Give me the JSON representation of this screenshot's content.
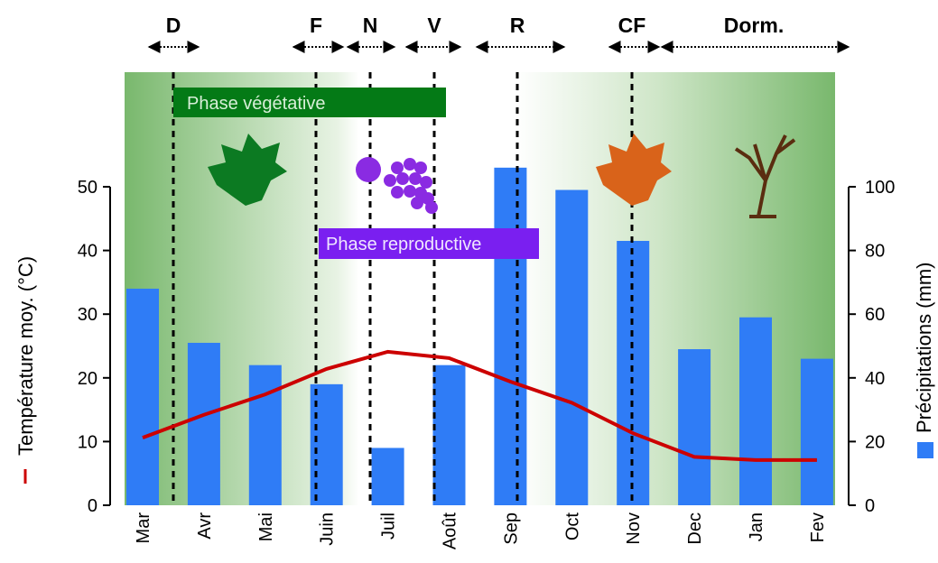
{
  "chart_data": {
    "type": "combo",
    "categories": [
      "Mar",
      "Avr",
      "Mai",
      "Juin",
      "Juil",
      "Août",
      "Sep",
      "Oct",
      "Nov",
      "Dec",
      "Jan",
      "Fev"
    ],
    "series": [
      {
        "name": "Précipitations (mm)",
        "type": "bar",
        "axis": "y2",
        "color": "#2f7cf6",
        "values": [
          68,
          51,
          44,
          38,
          18,
          44,
          106,
          99,
          83,
          49,
          59,
          46
        ]
      },
      {
        "name": "Température moy. (°C)",
        "type": "line",
        "axis": "y",
        "color": "#cc0000",
        "values": [
          10.6,
          14.2,
          17.4,
          21.4,
          24.1,
          23.1,
          19.4,
          16.1,
          11.3,
          7.6,
          7.1,
          7.1
        ]
      }
    ],
    "ylim": [
      0,
      50
    ],
    "yticks": [
      0,
      10,
      20,
      30,
      40,
      50
    ],
    "y2lim": [
      0,
      100
    ],
    "y2ticks": [
      0,
      20,
      40,
      60,
      80,
      100
    ],
    "stages": [
      "D",
      "F",
      "N",
      "V",
      "R",
      "CF",
      "Dorm."
    ],
    "phases": [
      "Phase végétative",
      "Phase reproductive"
    ]
  }
}
